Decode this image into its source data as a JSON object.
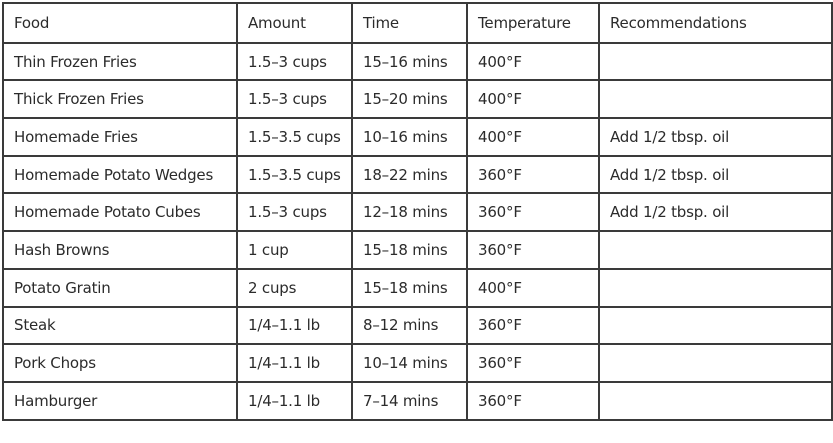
{
  "headers": [
    "Food",
    "Amount",
    "Time",
    "Temperature",
    "Recommendations"
  ],
  "rows": [
    [
      "Thin Frozen Fries",
      "1.5–3 cups",
      "15–16 mins",
      "400°F",
      ""
    ],
    [
      "Thick Frozen Fries",
      "1.5–3 cups",
      "15–20 mins",
      "400°F",
      ""
    ],
    [
      "Homemade Fries",
      "1.5–3.5 cups",
      "10–16 mins",
      "400°F",
      "Add 1/2 tbsp. oil"
    ],
    [
      "Homemade Potato Wedges",
      "1.5–3.5 cups",
      "18–22 mins",
      "360°F",
      "Add 1/2 tbsp. oil"
    ],
    [
      "Homemade Potato Cubes",
      "1.5–3 cups",
      "12–18 mins",
      "360°F",
      "Add 1/2 tbsp. oil"
    ],
    [
      "Hash Browns",
      "1 cup",
      "15–18 mins",
      "360°F",
      ""
    ],
    [
      "Potato Gratin",
      "2 cups",
      "15–18 mins",
      "400°F",
      ""
    ],
    [
      "Steak",
      "1/4–1.1 lb",
      "8–12 mins",
      "360°F",
      ""
    ],
    [
      "Pork Chops",
      "1/4–1.1 lb",
      "10–14 mins",
      "360°F",
      ""
    ],
    [
      "Hamburger",
      "1/4–1.1 lb",
      "7–14 mins",
      "360°F",
      ""
    ]
  ]
}
